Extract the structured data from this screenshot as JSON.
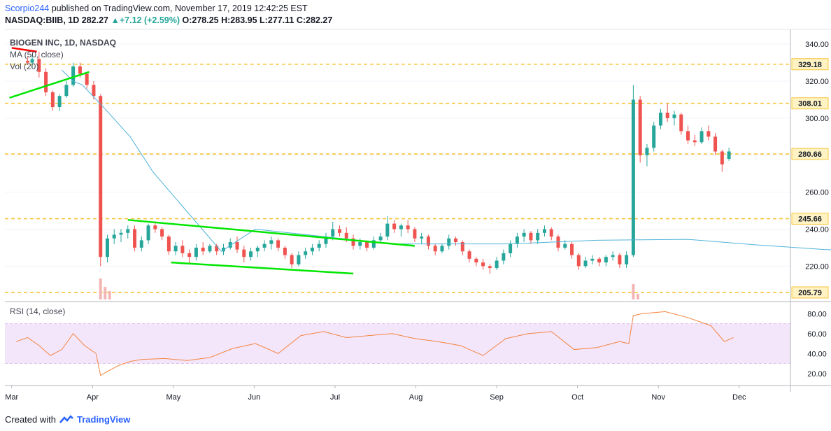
{
  "header": {
    "author": "Scorpio244",
    "published": " published on TradingView.com, November 17, 2019 12:42:25 EST",
    "symbol": "NASDAQ:BIIB, 1D",
    "last": "282.27",
    "change": "+7.12 (+2.59%)",
    "ohlc_o": "O:278.25",
    "ohlc_h": "H:283.95",
    "ohlc_l": "L:277.11",
    "ohlc_c": "C:282.27"
  },
  "legend": {
    "title": "BIOGEN INC, 1D, NASDAQ",
    "ma": "MA (50, close)",
    "vol": "Vol (20)",
    "rsi": "RSI (14, close)"
  },
  "footer": {
    "created": "Created with",
    "brand": "TradingView"
  },
  "colors": {
    "up": "#26a69a",
    "down": "#ef5350",
    "ma": "#4fb3d9",
    "level": "#f7c43a",
    "trend_green": "#00e600",
    "trend_red": "#ff0000",
    "rsi": "#f4843f",
    "rsi_band": "#f3e6fb"
  },
  "chart_data": [
    {
      "type": "candlestick",
      "title": "BIOGEN INC, 1D, NASDAQ",
      "x_labels": [
        "Mar",
        "Apr",
        "May",
        "Jun",
        "Jul",
        "Aug",
        "Sep",
        "Oct",
        "Nov",
        "Dec"
      ],
      "ylim": [
        202,
        348
      ],
      "y_ticks": [
        220,
        240,
        260,
        280,
        300,
        320,
        340
      ],
      "levels": [
        329.18,
        308.01,
        280.66,
        245.66,
        205.79
      ],
      "ma_50": [
        [
          2.5,
          326
        ],
        [
          3.0,
          320
        ],
        [
          3.4,
          318
        ],
        [
          4.4,
          305
        ],
        [
          5.5,
          290
        ],
        [
          6.5,
          271
        ],
        [
          9.5,
          228
        ],
        [
          11.0,
          240
        ],
        [
          14.0,
          236
        ],
        [
          17.0,
          232
        ],
        [
          22.0,
          232
        ],
        [
          26.0,
          234
        ],
        [
          30.0,
          234.5
        ],
        [
          33.0,
          231.5
        ],
        [
          36.0,
          229
        ],
        [
          38.2,
          228
        ],
        [
          39.2,
          233
        ],
        [
          40.4,
          241
        ],
        [
          41.6,
          248
        ],
        [
          42.4,
          252
        ]
      ],
      "daily": [
        [
          1.0,
          331,
          333,
          329,
          330
        ],
        [
          1.2,
          330,
          334,
          327,
          332
        ],
        [
          1.5,
          332,
          336,
          322,
          325
        ],
        [
          1.8,
          325,
          327,
          312,
          314
        ],
        [
          2.1,
          314,
          315,
          304,
          306
        ],
        [
          2.4,
          306,
          313,
          304,
          312
        ],
        [
          2.7,
          312,
          320,
          311,
          318
        ],
        [
          3.0,
          318,
          330,
          317,
          328
        ],
        [
          3.3,
          328,
          330,
          322,
          324
        ],
        [
          3.6,
          324,
          325,
          316,
          318
        ],
        [
          3.9,
          318,
          320,
          310,
          312
        ],
        [
          4.2,
          312,
          313,
          220,
          225
        ],
        [
          4.5,
          225,
          237,
          222,
          235
        ],
        [
          4.8,
          235,
          240,
          232,
          237
        ],
        [
          5.1,
          237,
          240,
          233,
          238
        ],
        [
          5.4,
          238,
          242,
          235,
          240
        ],
        [
          5.7,
          240,
          242,
          228,
          230
        ],
        [
          6.0,
          230,
          236,
          228,
          234
        ],
        [
          6.3,
          234,
          243,
          232,
          242
        ],
        [
          6.6,
          242,
          244,
          238,
          240
        ],
        [
          6.9,
          240,
          241,
          234,
          236
        ],
        [
          7.2,
          236,
          237,
          226,
          228
        ],
        [
          7.5,
          228,
          233,
          226,
          231
        ],
        [
          7.8,
          231,
          234,
          225,
          227
        ],
        [
          8.1,
          227,
          229,
          221,
          225
        ],
        [
          8.4,
          225,
          232,
          223,
          230
        ],
        [
          8.7,
          230,
          233,
          226,
          228
        ],
        [
          9.0,
          228,
          232,
          227,
          231
        ],
        [
          9.3,
          231,
          232,
          226,
          228
        ],
        [
          9.6,
          228,
          232,
          226,
          230
        ],
        [
          9.9,
          230,
          235,
          229,
          233
        ],
        [
          10.2,
          233,
          236,
          227,
          229
        ],
        [
          10.5,
          229,
          231,
          222,
          225
        ],
        [
          10.8,
          225,
          230,
          223,
          228
        ],
        [
          11.1,
          228,
          231,
          225,
          230
        ],
        [
          11.4,
          230,
          234,
          228,
          232
        ],
        [
          11.7,
          232,
          236,
          229,
          234
        ],
        [
          12.0,
          234,
          235,
          228,
          230
        ],
        [
          12.3,
          230,
          231,
          224,
          226
        ],
        [
          12.6,
          226,
          227,
          219,
          221
        ],
        [
          12.9,
          221,
          228,
          220,
          226
        ],
        [
          13.2,
          226,
          230,
          224,
          228
        ],
        [
          13.5,
          228,
          232,
          226,
          230
        ],
        [
          13.8,
          230,
          234,
          228,
          232
        ],
        [
          14.1,
          232,
          238,
          230,
          236
        ],
        [
          14.4,
          236,
          244,
          234,
          240
        ],
        [
          14.7,
          240,
          242,
          236,
          238
        ],
        [
          15.0,
          238,
          241,
          233,
          235
        ],
        [
          15.3,
          235,
          237,
          229,
          231
        ],
        [
          15.6,
          231,
          235,
          229,
          233
        ],
        [
          15.9,
          233,
          234,
          228,
          230
        ],
        [
          16.2,
          230,
          236,
          229,
          234
        ],
        [
          16.5,
          234,
          238,
          233,
          236
        ],
        [
          16.8,
          236,
          247,
          234,
          243
        ],
        [
          17.1,
          243,
          245,
          238,
          240
        ],
        [
          17.4,
          240,
          243,
          236,
          242
        ],
        [
          17.7,
          242,
          245,
          238,
          240
        ],
        [
          18.0,
          240,
          241,
          233,
          235
        ],
        [
          18.3,
          235,
          238,
          232,
          236
        ],
        [
          18.6,
          236,
          237,
          229,
          231
        ],
        [
          18.9,
          231,
          232,
          226,
          228
        ],
        [
          19.2,
          228,
          232,
          227,
          231
        ],
        [
          19.5,
          231,
          237,
          229,
          235
        ],
        [
          19.8,
          235,
          236,
          231,
          233
        ],
        [
          20.1,
          233,
          234,
          226,
          228
        ],
        [
          20.4,
          228,
          229,
          222,
          224
        ],
        [
          20.7,
          224,
          225,
          220,
          222
        ],
        [
          21.0,
          222,
          224,
          218,
          220
        ],
        [
          21.3,
          220,
          221,
          216,
          219
        ],
        [
          21.6,
          219,
          225,
          218,
          223
        ],
        [
          21.9,
          223,
          229,
          221,
          227
        ],
        [
          22.2,
          227,
          234,
          225,
          232
        ],
        [
          22.5,
          232,
          238,
          230,
          236
        ],
        [
          22.8,
          236,
          240,
          233,
          238
        ],
        [
          23.1,
          238,
          239,
          232,
          234
        ],
        [
          23.4,
          234,
          240,
          232,
          238
        ],
        [
          23.7,
          238,
          242,
          236,
          240
        ],
        [
          24.0,
          240,
          241,
          234,
          236
        ],
        [
          24.3,
          236,
          237,
          228,
          230
        ],
        [
          24.6,
          230,
          234,
          229,
          232
        ],
        [
          24.9,
          232,
          233,
          224,
          226
        ],
        [
          25.2,
          226,
          227,
          218,
          220
        ],
        [
          25.5,
          220,
          225,
          219,
          223
        ],
        [
          25.8,
          223,
          226,
          221,
          224
        ],
        [
          26.1,
          224,
          225,
          220,
          222
        ],
        [
          26.4,
          222,
          226,
          220,
          225
        ],
        [
          26.7,
          225,
          228,
          223,
          226
        ],
        [
          27.0,
          226,
          227,
          219,
          221
        ],
        [
          27.3,
          221,
          228,
          219,
          226
        ],
        [
          27.6,
          226,
          318,
          225,
          310
        ],
        [
          27.9,
          310,
          312,
          276,
          280
        ],
        [
          28.2,
          280,
          286,
          274,
          284
        ],
        [
          28.5,
          284,
          298,
          282,
          296
        ],
        [
          28.8,
          296,
          305,
          294,
          303
        ],
        [
          29.1,
          303,
          308,
          298,
          300
        ],
        [
          29.4,
          300,
          304,
          296,
          302
        ],
        [
          29.7,
          302,
          303,
          291,
          293
        ],
        [
          30.0,
          293,
          296,
          286,
          288
        ],
        [
          30.3,
          288,
          291,
          285,
          287
        ],
        [
          30.6,
          287,
          295,
          286,
          293
        ],
        [
          30.9,
          293,
          296,
          288,
          290
        ],
        [
          31.2,
          290,
          292,
          280,
          282
        ],
        [
          31.5,
          282,
          283,
          271,
          275
        ],
        [
          31.8,
          278,
          284,
          277,
          282
        ]
      ],
      "volume": [
        [
          4.2,
          30
        ],
        [
          4.4,
          18
        ],
        [
          4.6,
          12
        ],
        [
          27.6,
          22
        ],
        [
          27.8,
          8
        ]
      ]
    },
    {
      "type": "line",
      "title": "RSI (14, close)",
      "ylim": [
        10,
        90
      ],
      "y_ticks": [
        20,
        40,
        60,
        80
      ],
      "bands": [
        30,
        70
      ],
      "values": [
        [
          0.5,
          52
        ],
        [
          1.0,
          56
        ],
        [
          1.5,
          48
        ],
        [
          2.0,
          38
        ],
        [
          2.5,
          44
        ],
        [
          3.0,
          60
        ],
        [
          3.5,
          48
        ],
        [
          4.0,
          40
        ],
        [
          4.2,
          18
        ],
        [
          4.5,
          22
        ],
        [
          5.0,
          28
        ],
        [
          5.5,
          32
        ],
        [
          6.0,
          34
        ],
        [
          7.0,
          35
        ],
        [
          8.0,
          33
        ],
        [
          9.0,
          36
        ],
        [
          10.0,
          45
        ],
        [
          11.0,
          50
        ],
        [
          12.0,
          40
        ],
        [
          13.0,
          58
        ],
        [
          14.0,
          62
        ],
        [
          15.0,
          56
        ],
        [
          16.0,
          58
        ],
        [
          17.0,
          60
        ],
        [
          18.0,
          55
        ],
        [
          19.0,
          52
        ],
        [
          20.0,
          48
        ],
        [
          21.0,
          38
        ],
        [
          22.0,
          55
        ],
        [
          23.0,
          60
        ],
        [
          24.0,
          62
        ],
        [
          25.0,
          44
        ],
        [
          26.0,
          46
        ],
        [
          27.0,
          52
        ],
        [
          27.4,
          50
        ],
        [
          27.6,
          78
        ],
        [
          28.0,
          80
        ],
        [
          29.0,
          82
        ],
        [
          30.0,
          76
        ],
        [
          30.5,
          72
        ],
        [
          31.0,
          68
        ],
        [
          31.3,
          60
        ],
        [
          31.6,
          52
        ],
        [
          32.0,
          56
        ]
      ]
    }
  ]
}
